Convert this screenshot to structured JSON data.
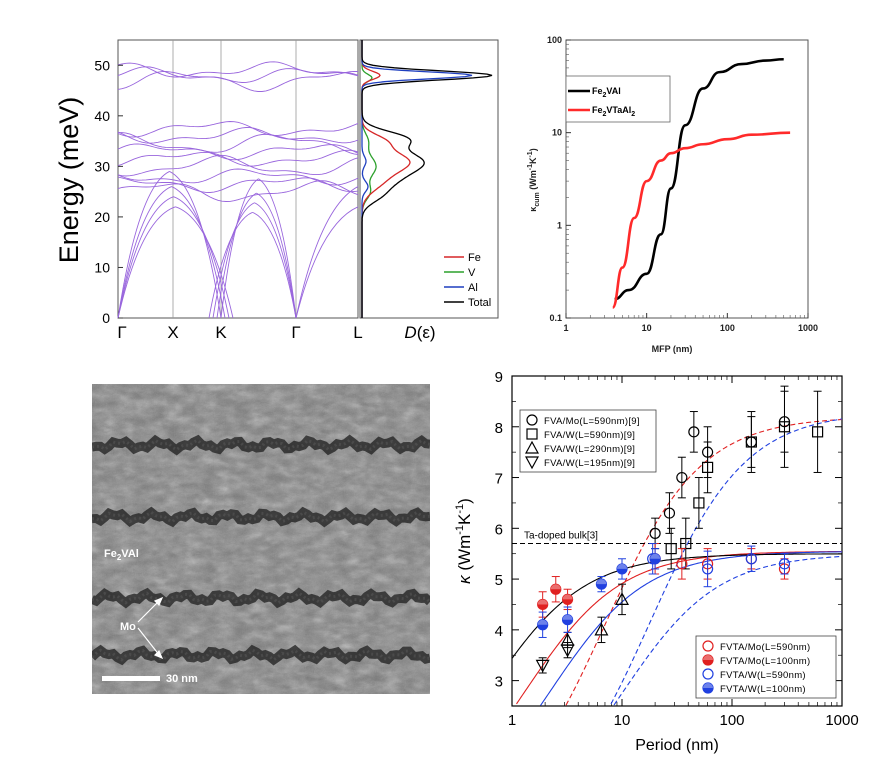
{
  "chart_data": [
    {
      "type": "line",
      "panel": "phonon-dispersion",
      "ylabel": "Energy (meV)",
      "ylim": [
        0,
        55
      ],
      "yticks": [
        "0",
        "10",
        "20",
        "30",
        "40",
        "50"
      ],
      "xticks": [
        "Γ",
        "X",
        "K",
        "Γ",
        "L"
      ],
      "band_levels_meV": [
        25,
        26.5,
        28,
        30,
        31.5,
        33,
        34.5,
        36,
        37.5,
        47,
        48,
        49
      ],
      "acoustic_max_meV": [
        29,
        26,
        24,
        22
      ]
    },
    {
      "type": "line",
      "panel": "phonon-dos",
      "xlabel": "D(ε)",
      "legend": {
        "placement": "bottom-right",
        "entries": [
          "Fe",
          "V",
          "Al",
          "Total"
        ]
      },
      "colors": {
        "Fe": "#d62728",
        "V": "#2ca02c",
        "Al": "#1f3fbf",
        "Total": "#000000"
      },
      "peaks_meV": {
        "Total": [
          48,
          31,
          36
        ],
        "Al": [
          48
        ],
        "Fe": [
          31,
          36
        ],
        "V": [
          30,
          25
        ]
      }
    },
    {
      "type": "line",
      "panel": "cumulative-kappa",
      "xscale": "log",
      "yscale": "log",
      "xlim": [
        1,
        1000
      ],
      "ylim": [
        0.1,
        100
      ],
      "xticks": [
        "1",
        "10",
        "100",
        "1000"
      ],
      "yticks": [
        "0.1",
        "1",
        "10",
        "100"
      ],
      "xlabel": "MFP (nm)",
      "ylabel": "κcum (Wm⁻¹K⁻¹)",
      "series": [
        {
          "name": "Fe2VAl",
          "color": "#000000",
          "x": [
            4,
            6,
            10,
            15,
            20,
            30,
            50,
            80,
            150,
            300,
            500
          ],
          "y": [
            0.16,
            0.2,
            0.3,
            0.8,
            2.5,
            12,
            30,
            45,
            55,
            60,
            62
          ]
        },
        {
          "name": "Fe2VTaAl2",
          "color": "#ff2a2a",
          "x": [
            3.8,
            5,
            7,
            10,
            15,
            20,
            30,
            50,
            100,
            200,
            600
          ],
          "y": [
            0.13,
            0.35,
            1.2,
            3,
            5,
            6,
            6.8,
            7.5,
            8.5,
            9.5,
            10
          ]
        }
      ]
    },
    {
      "type": "image",
      "panel": "tem-micrograph",
      "labels": {
        "matrix": "Fe2VAl",
        "layer": "Mo",
        "scale": "30 nm"
      }
    },
    {
      "type": "scatter",
      "panel": "kappa-vs-period",
      "xscale": "log",
      "xlim": [
        1,
        1000
      ],
      "ylim": [
        2.5,
        9
      ],
      "xticks": [
        "1",
        "10",
        "100",
        "1000"
      ],
      "yticks": [
        "3",
        "4",
        "5",
        "6",
        "7",
        "8",
        "9"
      ],
      "xlabel": "Period (nm)",
      "ylabel": "κ (Wm⁻¹K⁻¹)",
      "reference_line": {
        "label": "Ta-doped bulk[3]",
        "y": 5.7
      },
      "series": [
        {
          "name": "FVA/Mo(L=590nm)[9]",
          "marker": "circle-open",
          "color": "#000000",
          "x": [
            20,
            27,
            35,
            45,
            60,
            150,
            300
          ],
          "y": [
            5.9,
            6.3,
            7.0,
            7.9,
            7.5,
            7.7,
            8.1
          ],
          "err": [
            0.3,
            0.4,
            0.4,
            0.4,
            0.5,
            0.5,
            0.6
          ]
        },
        {
          "name": "FVA/W(L=590nm)[9]",
          "marker": "square-open",
          "color": "#000000",
          "x": [
            28,
            38,
            50,
            60,
            150,
            300,
            600
          ],
          "y": [
            5.6,
            5.7,
            6.5,
            7.2,
            7.7,
            8.0,
            7.9
          ],
          "err": [
            0.4,
            0.5,
            0.5,
            0.5,
            0.6,
            0.8,
            0.8
          ]
        },
        {
          "name": "FVA/W(L=290nm)[9]",
          "marker": "triangle-up-open",
          "color": "#000000",
          "x": [
            3.2,
            6.5,
            10
          ],
          "y": [
            3.8,
            4.0,
            4.6
          ],
          "err": [
            0.15,
            0.25,
            0.3
          ]
        },
        {
          "name": "FVA/W(L=195nm)[9]",
          "marker": "triangle-down-open",
          "color": "#000000",
          "x": [
            1.9,
            3.2
          ],
          "y": [
            3.3,
            3.6
          ],
          "err": [
            0.15,
            0.15
          ]
        },
        {
          "name": "FVTA/Mo(L=590nm)",
          "marker": "circle-open",
          "color": "#e02020",
          "x": [
            20,
            35,
            60,
            150,
            300
          ],
          "y": [
            5.4,
            5.3,
            5.3,
            5.4,
            5.2
          ],
          "err": [
            0.3,
            0.3,
            0.3,
            0.2,
            0.2
          ]
        },
        {
          "name": "FVTA/Mo(L=100nm)",
          "marker": "circle-half",
          "color": "#e02020",
          "x": [
            1.9,
            2.5,
            3.2
          ],
          "y": [
            4.5,
            4.8,
            4.6
          ],
          "err": [
            0.25,
            0.25,
            0.2
          ]
        },
        {
          "name": "FVTA/W(L=590nm)",
          "marker": "circle-open",
          "color": "#2040e0",
          "x": [
            19,
            60,
            150,
            300
          ],
          "y": [
            5.4,
            5.2,
            5.4,
            5.3
          ],
          "err": [
            0.3,
            0.35,
            0.25,
            0.2
          ]
        },
        {
          "name": "FVTA/W(L=100nm)",
          "marker": "circle-half",
          "color": "#2040e0",
          "x": [
            1.9,
            3.2,
            6.5,
            10,
            20
          ],
          "y": [
            4.1,
            4.2,
            4.9,
            5.2,
            5.4
          ],
          "err": [
            0.25,
            0.25,
            0.15,
            0.2,
            0.2
          ]
        }
      ]
    }
  ]
}
